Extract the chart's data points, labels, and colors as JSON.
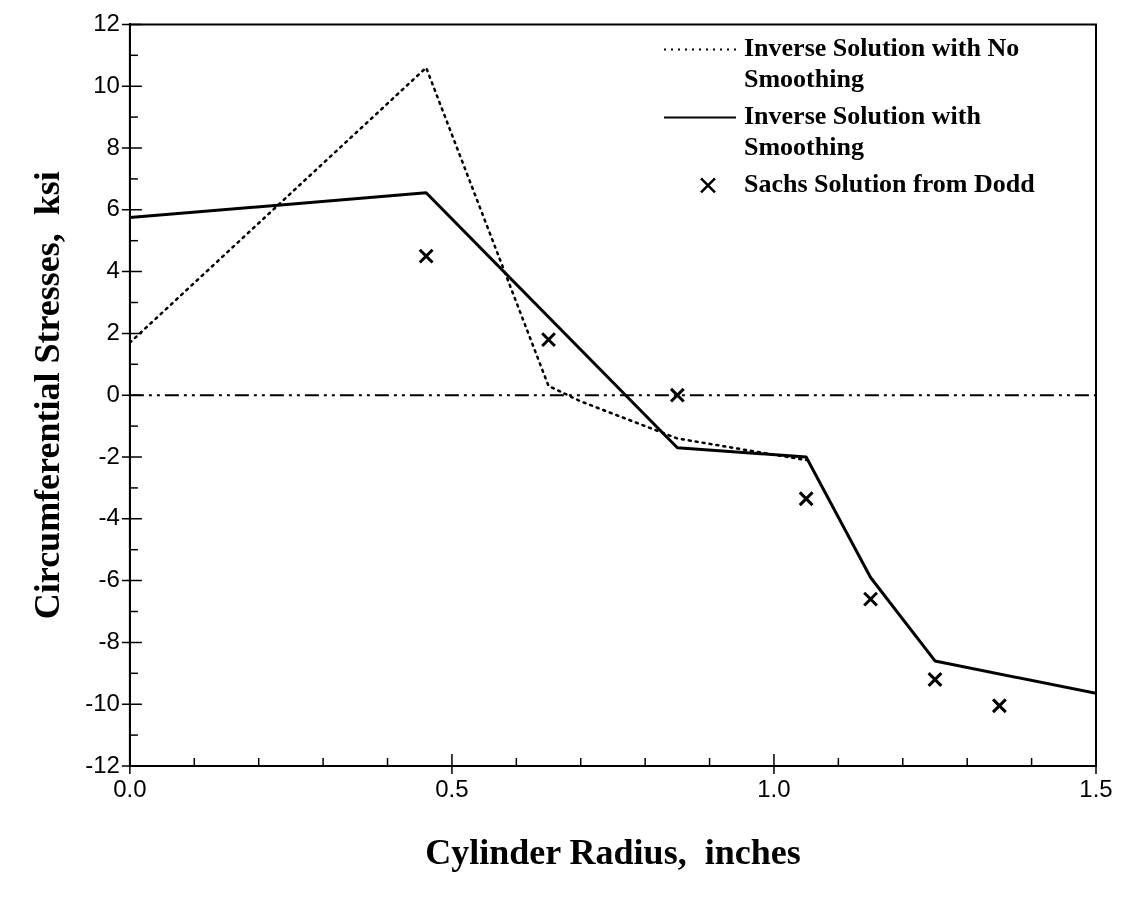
{
  "chart_data": {
    "type": "line",
    "xlabel": "Cylinder Radius,  inches",
    "ylabel": "Circumferential Stresses,  ksi",
    "xlim": [
      0,
      1.5
    ],
    "ylim": [
      -12,
      12
    ],
    "xticks": [
      {
        "value": 0,
        "label": "0.0"
      },
      {
        "value": 0.1,
        "label": null
      },
      {
        "value": 0.2,
        "label": null
      },
      {
        "value": 0.3,
        "label": null
      },
      {
        "value": 0.4,
        "label": null
      },
      {
        "value": 0.5,
        "label": "0.5"
      },
      {
        "value": 0.6,
        "label": null
      },
      {
        "value": 0.7,
        "label": null
      },
      {
        "value": 0.8,
        "label": null
      },
      {
        "value": 0.9,
        "label": null
      },
      {
        "value": 1,
        "label": "1.0"
      },
      {
        "value": 1.1,
        "label": null
      },
      {
        "value": 1.2,
        "label": null
      },
      {
        "value": 1.3,
        "label": null
      },
      {
        "value": 1.4,
        "label": null
      },
      {
        "value": 1.5,
        "label": "1.5"
      }
    ],
    "yticks": [
      -12,
      {
        "value": -11,
        "label": null
      },
      -10,
      {
        "value": -9,
        "label": null
      },
      -8,
      {
        "value": -7,
        "label": null
      },
      -6,
      {
        "value": -5,
        "label": null
      },
      -4,
      {
        "value": -3,
        "label": null
      },
      -2,
      {
        "value": -1,
        "label": null
      },
      0,
      {
        "value": 1,
        "label": null
      },
      2,
      {
        "value": 3,
        "label": null
      },
      4,
      {
        "value": 5,
        "label": null
      },
      6,
      {
        "value": 7,
        "label": null
      },
      8,
      {
        "value": 9,
        "label": null
      },
      10,
      {
        "value": 11,
        "label": null
      },
      12
    ],
    "grid": false,
    "legend": "top right",
    "ref_lines": [
      {
        "axis": "y",
        "value": 0,
        "label": null,
        "color": "#000000",
        "line_style": "dashdot"
      }
    ],
    "series": [
      {
        "name": "Inverse Solution with No Smoothing",
        "color": "#000000",
        "line_style": "dotted",
        "marker": "none",
        "x": [
          0,
          0.46,
          0.65,
          0.7,
          0.85,
          1.05
        ],
        "values": [
          1.7,
          10.6,
          0.3,
          -0.2,
          -1.4,
          -2.1
        ]
      },
      {
        "name": "Inverse Solution with Smoothing",
        "color": "#000000",
        "line_style": "solid",
        "marker": "none",
        "x": [
          0,
          0.46,
          0.85,
          1.05,
          1.15,
          1.25,
          1.5
        ],
        "values": [
          5.75,
          6.55,
          -1.7,
          -2.0,
          -5.9,
          -8.6,
          -9.65
        ]
      },
      {
        "name": "Sachs Solution from Dodd",
        "type": "scatter",
        "color": "#000000",
        "marker": "cross",
        "x": [
          0.46,
          0.65,
          0.85,
          1.05,
          1.15,
          1.25,
          1.35
        ],
        "values": [
          4.5,
          1.8,
          0,
          -3.35,
          -6.6,
          -9.2,
          -10.05
        ]
      }
    ]
  }
}
